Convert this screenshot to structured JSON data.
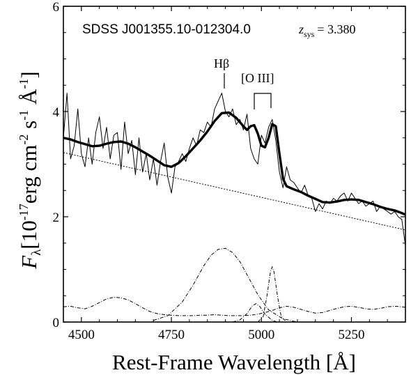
{
  "chart_data": {
    "type": "line",
    "annotations": {
      "object": "SDSS J001355.10-012304.0",
      "z_symbol": "z",
      "z_sub": "sys",
      "z_value": "= 3.380",
      "hbeta": "Hβ",
      "oiii": "[O III]"
    },
    "xlabel": "Rest-Frame Wavelength [Å]",
    "ylabel": {
      "symbol": "F",
      "sub": "λ",
      "pre": "[10",
      "exp1": "-17",
      "mid": "erg cm",
      "exp2": "-2",
      "mid2": " s",
      "exp3": "-1",
      "angstrom": " Å",
      "exp4": "-1",
      "post": "]"
    },
    "xlim": [
      4450,
      5400
    ],
    "ylim": [
      0,
      6
    ],
    "x_ticks": [
      4500,
      4750,
      5000,
      5250
    ],
    "y_ticks": [
      0,
      2,
      4,
      6
    ],
    "grid": false,
    "series": [
      {
        "role": "observed spectrum",
        "style": "thin solid",
        "x": [
          4450,
          4460,
          4470,
          4480,
          4490,
          4500,
          4510,
          4520,
          4530,
          4540,
          4550,
          4560,
          4570,
          4580,
          4590,
          4600,
          4610,
          4620,
          4630,
          4640,
          4650,
          4660,
          4670,
          4680,
          4690,
          4700,
          4710,
          4720,
          4730,
          4740,
          4750,
          4760,
          4770,
          4780,
          4790,
          4800,
          4810,
          4820,
          4830,
          4840,
          4850,
          4860,
          4870,
          4880,
          4890,
          4900,
          4910,
          4920,
          4930,
          4940,
          4950,
          4960,
          4970,
          4980,
          4990,
          5000,
          5010,
          5020,
          5030,
          5040,
          5050,
          5060,
          5070,
          5080,
          5090,
          5100,
          5110,
          5120,
          5130,
          5140,
          5150,
          5160,
          5170,
          5180,
          5190,
          5200,
          5210,
          5220,
          5230,
          5240,
          5250,
          5260,
          5270,
          5280,
          5290,
          5300,
          5310,
          5320,
          5330,
          5340,
          5350,
          5360,
          5370,
          5380,
          5390,
          5400
        ],
        "y": [
          3.5,
          4.35,
          3.1,
          3.35,
          4.05,
          3.2,
          2.95,
          3.5,
          3.0,
          3.6,
          3.9,
          3.3,
          3.7,
          3.1,
          3.55,
          3.6,
          2.9,
          3.8,
          3.2,
          3.45,
          2.8,
          3.5,
          2.85,
          3.2,
          2.7,
          3.1,
          2.6,
          3.05,
          3.4,
          2.75,
          2.45,
          2.95,
          3.05,
          3.2,
          3.05,
          3.3,
          3.5,
          3.35,
          3.65,
          3.6,
          3.8,
          3.7,
          4.05,
          4.2,
          4.35,
          4.0,
          3.9,
          4.05,
          3.75,
          3.85,
          3.65,
          3.95,
          3.3,
          3.1,
          3.0,
          3.55,
          3.4,
          3.7,
          3.85,
          3.45,
          2.85,
          2.55,
          2.95,
          2.7,
          2.65,
          2.55,
          2.45,
          2.6,
          2.4,
          2.35,
          2.1,
          2.25,
          2.15,
          2.3,
          2.25,
          2.35,
          2.3,
          2.4,
          2.45,
          2.3,
          2.45,
          2.35,
          2.25,
          2.3,
          2.2,
          2.25,
          2.3,
          2.1,
          2.2,
          2.15,
          2.1,
          2.05,
          2.1,
          2.0,
          1.95,
          1.45
        ]
      },
      {
        "role": "total model fit",
        "style": "thick solid",
        "x": [
          4450,
          4470,
          4490,
          4510,
          4530,
          4550,
          4570,
          4590,
          4610,
          4630,
          4650,
          4670,
          4690,
          4710,
          4730,
          4750,
          4770,
          4790,
          4810,
          4830,
          4850,
          4870,
          4890,
          4910,
          4930,
          4950,
          4960,
          4970,
          4980,
          4990,
          5000,
          5010,
          5020,
          5030,
          5040,
          5050,
          5060,
          5070,
          5090,
          5110,
          5130,
          5150,
          5170,
          5190,
          5210,
          5230,
          5250,
          5270,
          5290,
          5310,
          5330,
          5350,
          5370,
          5390,
          5400
        ],
        "y": [
          3.5,
          3.47,
          3.42,
          3.38,
          3.34,
          3.35,
          3.39,
          3.42,
          3.43,
          3.39,
          3.32,
          3.24,
          3.16,
          3.07,
          2.98,
          2.95,
          3.02,
          3.15,
          3.3,
          3.45,
          3.62,
          3.82,
          3.97,
          3.98,
          3.88,
          3.72,
          3.65,
          3.72,
          3.74,
          3.58,
          3.35,
          3.32,
          3.5,
          3.76,
          3.72,
          3.2,
          2.72,
          2.58,
          2.52,
          2.47,
          2.4,
          2.34,
          2.28,
          2.27,
          2.29,
          2.32,
          2.33,
          2.32,
          2.28,
          2.24,
          2.19,
          2.15,
          2.12,
          2.07,
          2.04
        ]
      },
      {
        "role": "power-law continuum",
        "style": "thin dotted",
        "x": [
          4450,
          5400
        ],
        "y": [
          3.22,
          1.75
        ]
      },
      {
        "role": "iron emission component",
        "style": "dash-dot",
        "x": [
          4450,
          4470,
          4490,
          4510,
          4530,
          4550,
          4570,
          4590,
          4610,
          4630,
          4650,
          4670,
          4690,
          4710,
          4730,
          4750,
          4770,
          4790,
          4810,
          4830,
          4850,
          4870,
          4890,
          4910,
          4930,
          4950,
          4970,
          4990,
          5010,
          5030,
          5050,
          5070,
          5090,
          5110,
          5130,
          5150,
          5170,
          5190,
          5210,
          5230,
          5250,
          5270,
          5290,
          5310,
          5330,
          5350,
          5370,
          5390,
          5400
        ],
        "y": [
          0.29,
          0.3,
          0.27,
          0.25,
          0.3,
          0.37,
          0.44,
          0.47,
          0.46,
          0.42,
          0.35,
          0.27,
          0.2,
          0.16,
          0.14,
          0.13,
          0.12,
          0.12,
          0.12,
          0.13,
          0.13,
          0.14,
          0.13,
          0.12,
          0.12,
          0.12,
          0.13,
          0.15,
          0.18,
          0.22,
          0.27,
          0.3,
          0.28,
          0.24,
          0.2,
          0.17,
          0.18,
          0.22,
          0.26,
          0.29,
          0.3,
          0.28,
          0.25,
          0.24,
          0.26,
          0.29,
          0.3,
          0.29,
          0.28
        ]
      },
      {
        "role": "Hbeta broad gaussian",
        "style": "dash-dot",
        "x": [
          4700,
          4740,
          4780,
          4810,
          4840,
          4860,
          4880,
          4900,
          4920,
          4940,
          4960,
          4990,
          5020,
          5060,
          5100
        ],
        "y": [
          0.03,
          0.12,
          0.38,
          0.7,
          1.07,
          1.27,
          1.38,
          1.4,
          1.32,
          1.15,
          0.9,
          0.52,
          0.23,
          0.06,
          0.0
        ]
      },
      {
        "role": "[O III] 4959 gaussian",
        "style": "dash-dot",
        "x": [
          4920,
          4940,
          4960,
          4975,
          4985,
          4995,
          5010,
          5030,
          5045
        ],
        "y": [
          0.0,
          0.04,
          0.16,
          0.31,
          0.35,
          0.3,
          0.15,
          0.03,
          0.0
        ]
      },
      {
        "role": "[O III] 5007 gaussian",
        "style": "dash-dot",
        "x": [
          4990,
          5005,
          5015,
          5025,
          5030,
          5035,
          5045,
          5055,
          5070
        ],
        "y": [
          0.0,
          0.1,
          0.48,
          0.95,
          1.05,
          0.95,
          0.48,
          0.1,
          0.0
        ]
      }
    ]
  }
}
